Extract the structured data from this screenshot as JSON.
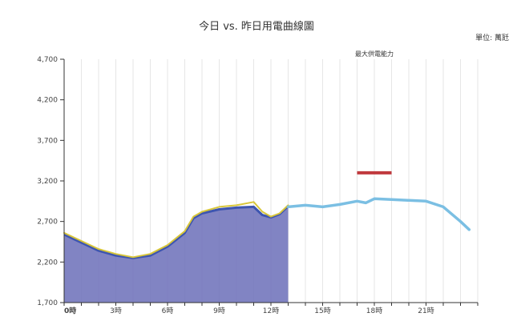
{
  "chart_data": {
    "type": "area",
    "title": "今日 vs. 昨日用電曲線圖",
    "unit_label": "單位: 萬瓩",
    "annotation": "最大供電能力",
    "y_ticks": [
      "4,700",
      "4,200",
      "3,700",
      "3,200",
      "2,700",
      "2,200",
      "1,700"
    ],
    "y_values": [
      4700,
      4200,
      3700,
      3200,
      2700,
      2200,
      1700
    ],
    "ylim": [
      1700,
      4700
    ],
    "xlim": [
      0,
      24
    ],
    "x_ticks": [
      {
        "label": "0時",
        "value": 0
      },
      {
        "label": "3時",
        "value": 3
      },
      {
        "label": "6時",
        "value": 6
      },
      {
        "label": "9時",
        "value": 9
      },
      {
        "label": "12時",
        "value": 12
      },
      {
        "label": "15時",
        "value": 15
      },
      {
        "label": "18時",
        "value": 18
      },
      {
        "label": "21時",
        "value": 21
      }
    ],
    "grid": true,
    "max_supply": {
      "value": 3300,
      "x_start": 17,
      "x_end": 19,
      "color": "#c0393e"
    },
    "series": [
      {
        "role": "today",
        "style": "area",
        "color": "#6b6fb8",
        "line_color": "#3d55b0",
        "points": [
          [
            0,
            2540
          ],
          [
            1,
            2440
          ],
          [
            2,
            2340
          ],
          [
            3,
            2280
          ],
          [
            4,
            2250
          ],
          [
            5,
            2280
          ],
          [
            6,
            2390
          ],
          [
            7,
            2560
          ],
          [
            7.5,
            2740
          ],
          [
            8,
            2800
          ],
          [
            9,
            2850
          ],
          [
            10,
            2870
          ],
          [
            11,
            2880
          ],
          [
            11.5,
            2780
          ],
          [
            12,
            2750
          ],
          [
            12.5,
            2790
          ],
          [
            13,
            2890
          ]
        ]
      },
      {
        "role": "yesterday",
        "style": "line",
        "color": "#d8c63a",
        "points": [
          [
            0,
            2560
          ],
          [
            1,
            2460
          ],
          [
            2,
            2360
          ],
          [
            3,
            2300
          ],
          [
            4,
            2260
          ],
          [
            5,
            2300
          ],
          [
            6,
            2410
          ],
          [
            7,
            2580
          ],
          [
            7.5,
            2760
          ],
          [
            8,
            2820
          ],
          [
            9,
            2880
          ],
          [
            10,
            2900
          ],
          [
            11,
            2940
          ],
          [
            11.5,
            2820
          ],
          [
            12,
            2760
          ],
          [
            12.5,
            2800
          ],
          [
            13,
            2900
          ]
        ]
      },
      {
        "role": "forecast",
        "style": "line",
        "color": "#7bbfe3",
        "points": [
          [
            13,
            2880
          ],
          [
            14,
            2900
          ],
          [
            15,
            2880
          ],
          [
            16,
            2910
          ],
          [
            17,
            2950
          ],
          [
            17.5,
            2930
          ],
          [
            18,
            2980
          ],
          [
            19,
            2970
          ],
          [
            20,
            2960
          ],
          [
            21,
            2950
          ],
          [
            22,
            2880
          ],
          [
            23,
            2700
          ],
          [
            23.5,
            2600
          ]
        ]
      }
    ]
  }
}
